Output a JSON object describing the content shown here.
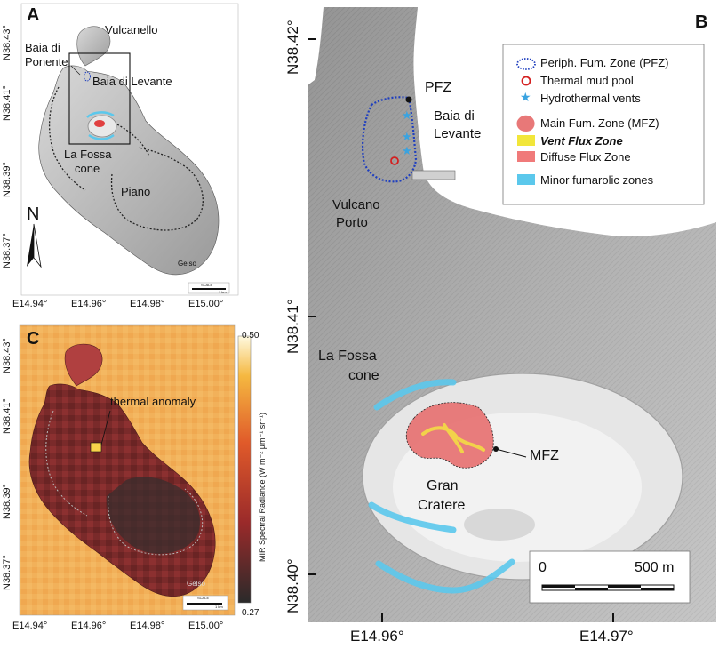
{
  "panel_a": {
    "letter": "A",
    "places": {
      "vulcanello": "Vulcanello",
      "baia_ponente_1": "Baia di",
      "baia_ponente_2": "Ponente",
      "baia_levante": "Baia di Levante",
      "la_fossa_1": "La Fossa",
      "la_fossa_2": "cone",
      "piano": "Piano",
      "gelso": "Gelso"
    },
    "north": "N",
    "scale": "SCALE",
    "scale_dist": "1 km",
    "lat_ticks": [
      "N38.43°",
      "N38.41°",
      "N38.39°",
      "N38.37°"
    ],
    "lon_ticks": [
      "E14.94°",
      "E14.96°",
      "E14.98°",
      "E15.00°"
    ]
  },
  "panel_b": {
    "letter": "B",
    "lat_ticks": [
      "N38.42°",
      "N38.41°",
      "N38.40°"
    ],
    "lon_ticks": [
      "E14.96°",
      "E14.97°"
    ],
    "places": {
      "pfz": "PFZ",
      "baia_1": "Baia di",
      "baia_2": "Levante",
      "porto_1": "Vulcano",
      "porto_2": "Porto",
      "fossa_1": "La Fossa",
      "fossa_2": "cone",
      "gran_1": "Gran",
      "gran_2": "Cratere",
      "mfz": "MFZ"
    },
    "legend": {
      "pfz": "Periph. Fum. Zone (PFZ)",
      "mud": "Thermal mud pool",
      "vents": "Hydrothermal vents",
      "mfz": "Main Fum. Zone (MFZ)",
      "vent_flux": "Vent Flux Zone",
      "diffuse": "Diffuse Flux Zone",
      "minor": "Minor fumarolic zones"
    },
    "scale": {
      "start": "0",
      "end": "500 m"
    }
  },
  "panel_c": {
    "letter": "C",
    "annotation": "thermal anomaly",
    "colorbar_label": "MIR Spectral Radiance (W m⁻² µm⁻¹ sr⁻¹)",
    "colorbar_max": "0.50",
    "colorbar_min": "0.27",
    "gelso": "Gelso",
    "scale": "SCALE",
    "scale_dist": "1 km",
    "lat_ticks": [
      "N38.43°",
      "N38.41°",
      "N38.39°",
      "N38.37°"
    ],
    "lon_ticks": [
      "E14.94°",
      "E14.96°",
      "E14.98°",
      "E15.00°"
    ]
  },
  "colors": {
    "pfz_outline": "#1f3fbf",
    "mud_pool": "#d42020",
    "vents": "#3aa3e0",
    "main_fumarole": "#e87878",
    "vent_flux": "#f2e63a",
    "diffuse": "#f07a7a",
    "minor": "#5bc8ec"
  }
}
